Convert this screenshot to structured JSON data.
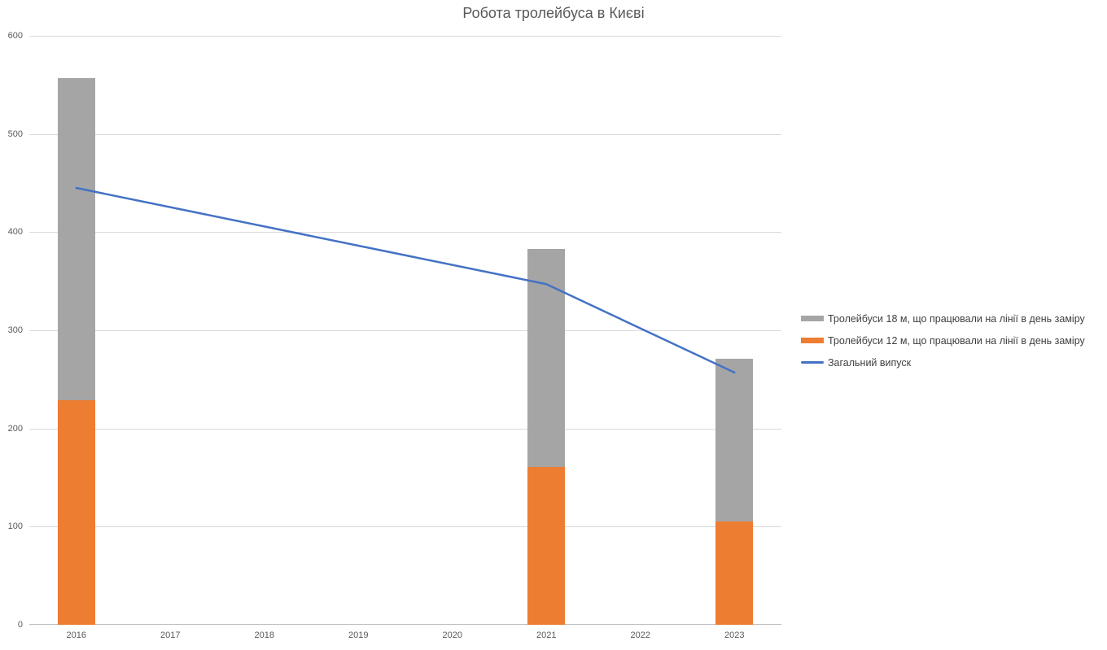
{
  "title": "Робота тролейбуса в Києві",
  "colors": {
    "background": "#FFFFFF",
    "bar_18m": "#A5A5A5",
    "bar_12m": "#ED7D31",
    "line_total": "#4472C4",
    "gridline": "#D9D9D9",
    "axis_line": "#BFBFBF",
    "tick_label": "#595959",
    "title_text": "#595959",
    "legend_text": "#404040"
  },
  "chart_data": {
    "type": "bar",
    "subtype": "stacked-bar-with-line-overlay",
    "title": "Робота тролейбуса в Києві",
    "categories": [
      "2016",
      "2017",
      "2018",
      "2019",
      "2020",
      "2021",
      "2022",
      "2023"
    ],
    "series": [
      {
        "name": "Тролейбуси 18 м, що працювали на лінії в день заміру",
        "short": "18m",
        "type": "bar",
        "stack_position": "top",
        "color": "#A5A5A5",
        "values": [
          328,
          null,
          null,
          null,
          null,
          222,
          null,
          166
        ]
      },
      {
        "name": "Тролейбуси 12 м, що працювали на лінії в день заміру",
        "short": "12m",
        "type": "bar",
        "stack_position": "bottom",
        "color": "#ED7D31",
        "values": [
          229,
          null,
          null,
          null,
          null,
          161,
          null,
          105
        ]
      },
      {
        "name": "Загальний випуск",
        "short": "total-line",
        "type": "line",
        "color": "#4472C4",
        "values": [
          445,
          null,
          null,
          null,
          null,
          347,
          null,
          257
        ]
      }
    ],
    "stacked_bar_totals": [
      557,
      null,
      null,
      null,
      null,
      383,
      null,
      271
    ],
    "xlabel": "",
    "ylabel": "",
    "ylim": [
      0,
      600
    ],
    "yticks": [
      0,
      100,
      200,
      300,
      400,
      500,
      600
    ],
    "grid": true,
    "legend_position": "right-center"
  },
  "legend": {
    "items": [
      {
        "label": "Тролейбуси 18 м, що працювали на лінії в день заміру",
        "swatch": "bar",
        "color": "#A5A5A5"
      },
      {
        "label": "Тролейбуси 12 м, що працювали на лінії в день заміру",
        "swatch": "bar",
        "color": "#ED7D31"
      },
      {
        "label": "Загальний випуск",
        "swatch": "line",
        "color": "#4472C4"
      }
    ]
  }
}
